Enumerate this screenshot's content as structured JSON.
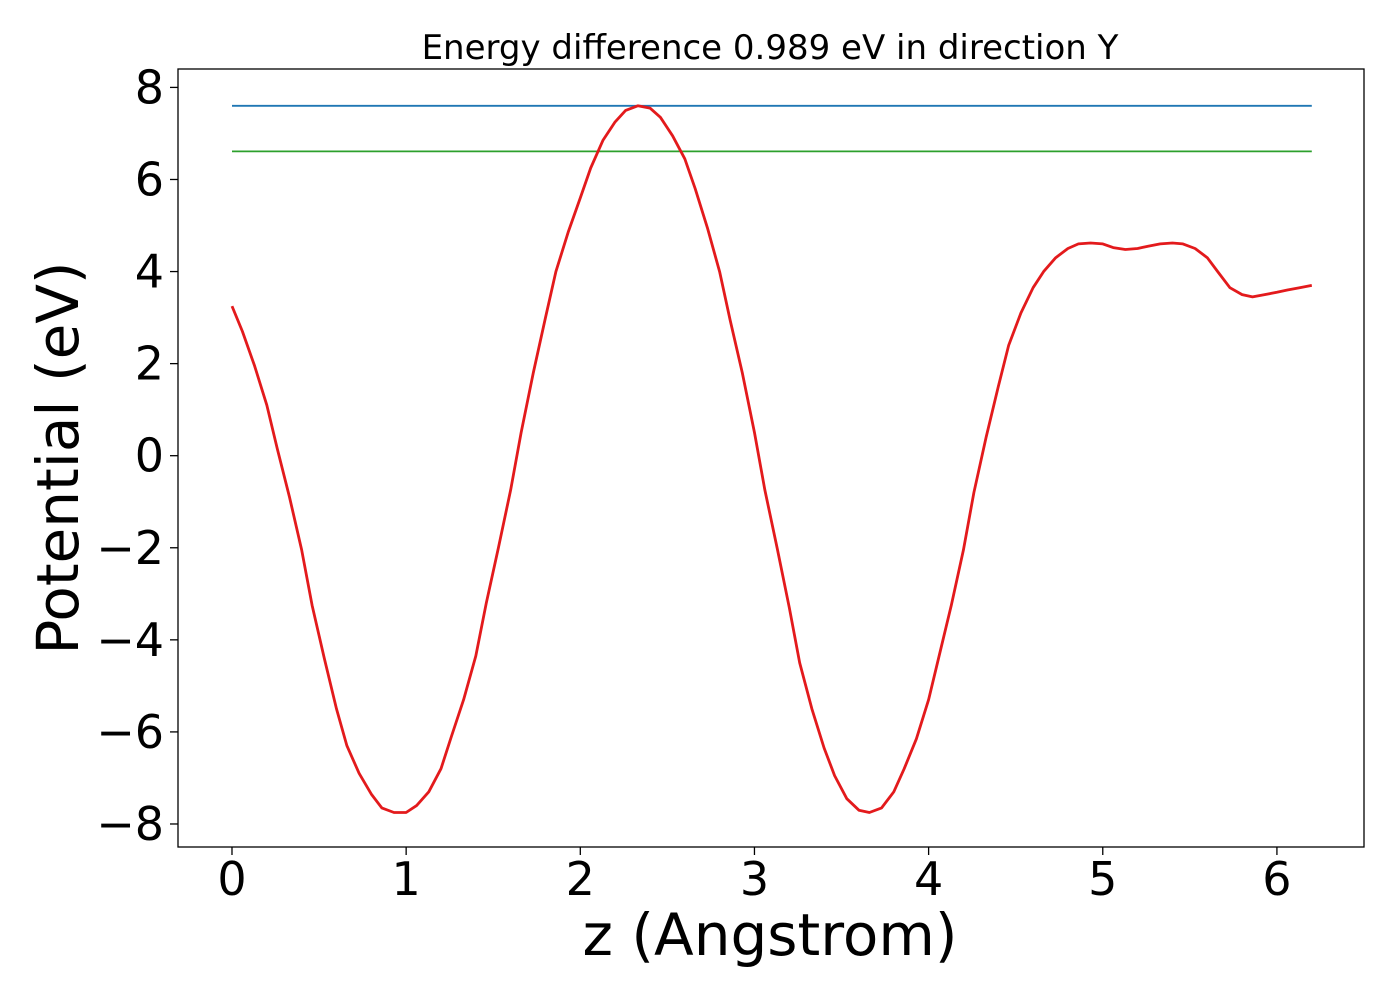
{
  "chart_data": {
    "type": "line",
    "title": "Energy difference 0.989 eV in direction Y",
    "xlabel": "z (Angstrom)",
    "ylabel": "Potential (eV)",
    "xlim": [
      -0.31,
      6.5
    ],
    "ylim": [
      -8.5,
      8.4
    ],
    "xticks": [
      0,
      1,
      2,
      3,
      4,
      5,
      6
    ],
    "yticks": [
      -8,
      -6,
      -4,
      -2,
      0,
      2,
      4,
      6,
      8
    ],
    "xtick_labels": [
      "0",
      "1",
      "2",
      "3",
      "4",
      "5",
      "6"
    ],
    "ytick_labels": [
      "−8",
      "−6",
      "−4",
      "−2",
      "0",
      "2",
      "4",
      "6",
      "8"
    ],
    "grid": false,
    "legend": "none",
    "series": [
      {
        "color": "#1f77b4",
        "x": [
          0,
          6.2
        ],
        "y": [
          7.6,
          7.6
        ]
      },
      {
        "color": "#2ca02c",
        "x": [
          0,
          6.2
        ],
        "y": [
          6.61,
          6.61
        ]
      },
      {
        "color": "#e31a1c",
        "x": [
          0,
          0.06,
          0.13,
          0.2,
          0.26,
          0.33,
          0.4,
          0.46,
          0.53,
          0.6,
          0.66,
          0.73,
          0.8,
          0.86,
          0.93,
          1.0,
          1.06,
          1.13,
          1.2,
          1.26,
          1.33,
          1.4,
          1.46,
          1.53,
          1.6,
          1.66,
          1.73,
          1.8,
          1.86,
          1.93,
          2.0,
          2.06,
          2.13,
          2.2,
          2.26,
          2.33,
          2.4,
          2.46,
          2.53,
          2.6,
          2.66,
          2.73,
          2.8,
          2.86,
          2.93,
          3.0,
          3.06,
          3.13,
          3.2,
          3.26,
          3.33,
          3.4,
          3.46,
          3.53,
          3.6,
          3.66,
          3.73,
          3.8,
          3.86,
          3.93,
          4.0,
          4.06,
          4.13,
          4.2,
          4.26,
          4.33,
          4.4,
          4.46,
          4.53,
          4.6,
          4.66,
          4.73,
          4.8,
          4.86,
          4.93,
          5.0,
          5.06,
          5.13,
          5.2,
          5.26,
          5.33,
          5.4,
          5.46,
          5.53,
          5.6,
          5.66,
          5.73,
          5.8,
          5.86,
          5.93,
          6.0,
          6.06,
          6.13,
          6.2
        ],
        "y": [
          3.25,
          2.7,
          1.95,
          1.1,
          0.15,
          -0.9,
          -2.05,
          -3.25,
          -4.4,
          -5.5,
          -6.3,
          -6.9,
          -7.35,
          -7.65,
          -7.75,
          -7.75,
          -7.6,
          -7.3,
          -6.8,
          -6.1,
          -5.3,
          -4.35,
          -3.2,
          -2.0,
          -0.75,
          0.5,
          1.8,
          3.0,
          4.0,
          4.85,
          5.6,
          6.25,
          6.85,
          7.25,
          7.5,
          7.6,
          7.55,
          7.35,
          6.95,
          6.45,
          5.8,
          4.95,
          4.0,
          2.95,
          1.8,
          0.5,
          -0.75,
          -2.0,
          -3.3,
          -4.5,
          -5.5,
          -6.35,
          -6.95,
          -7.45,
          -7.7,
          -7.75,
          -7.65,
          -7.3,
          -6.8,
          -6.15,
          -5.3,
          -4.35,
          -3.25,
          -2.05,
          -0.8,
          0.4,
          1.5,
          2.4,
          3.1,
          3.65,
          4.0,
          4.3,
          4.5,
          4.6,
          4.62,
          4.6,
          4.52,
          4.48,
          4.5,
          4.55,
          4.6,
          4.62,
          4.6,
          4.5,
          4.3,
          4.0,
          3.65,
          3.5,
          3.45,
          3.5,
          3.55,
          3.6,
          3.65,
          3.7
        ]
      }
    ]
  }
}
